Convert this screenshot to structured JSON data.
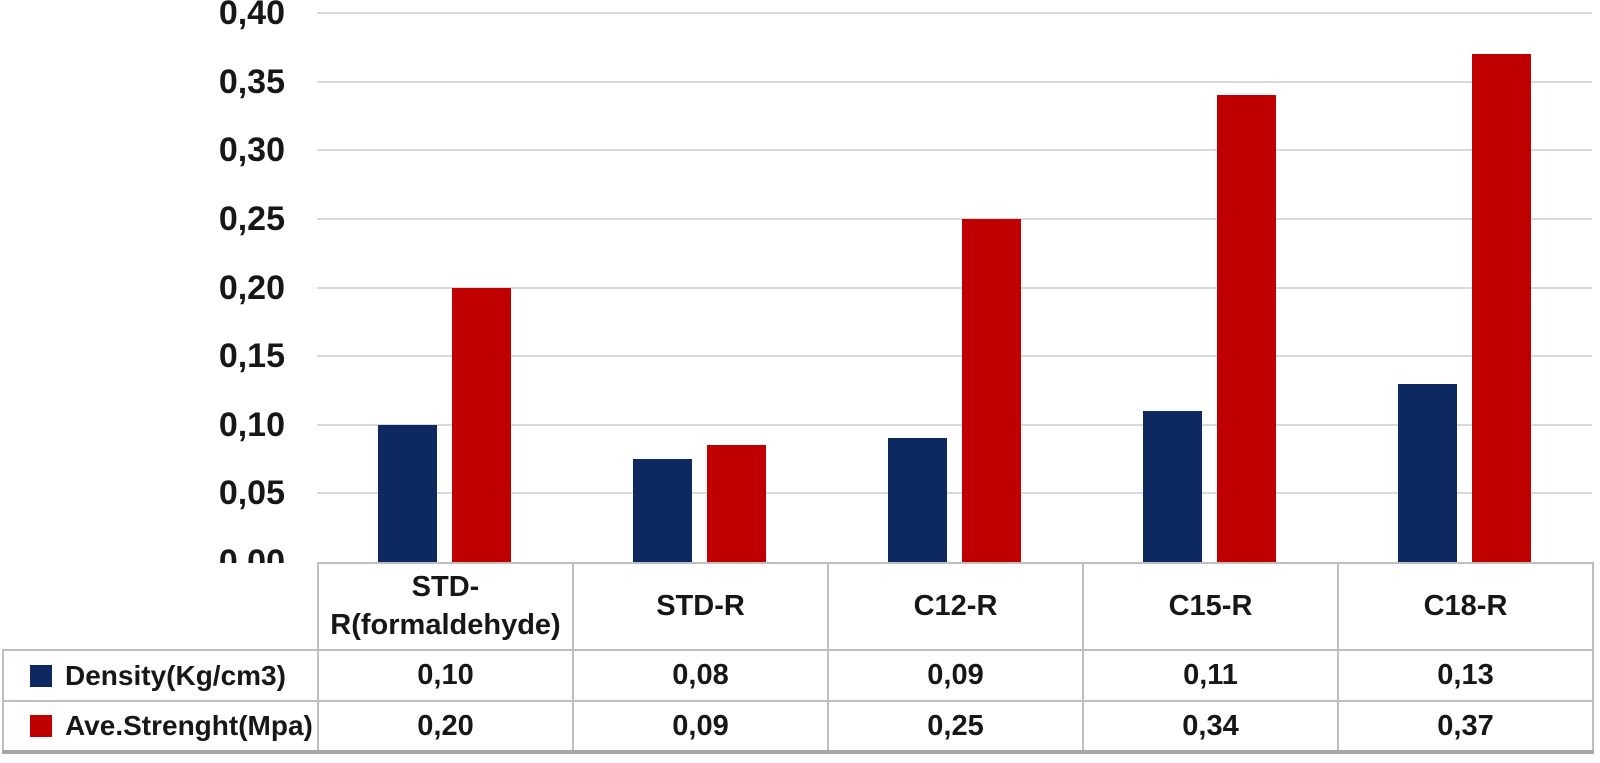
{
  "chart_data": {
    "type": "bar",
    "title": "",
    "xlabel": "",
    "ylabel": "",
    "categories": [
      "STD-R(formaldehyde)",
      "STD-R",
      "C12-R",
      "C15-R",
      "C18-R"
    ],
    "series": [
      {
        "name": "Density(Kg/cm3)",
        "color": "#0e2862",
        "values": [
          0.1,
          0.08,
          0.09,
          0.11,
          0.13
        ],
        "display": [
          "0,10",
          "0,08",
          "0,09",
          "0,11",
          "0,13"
        ],
        "bar_values": [
          0.1,
          0.075,
          0.09,
          0.11,
          0.13
        ]
      },
      {
        "name": "Ave.Strenght(Mpa)",
        "color": "#c00000",
        "values": [
          0.2,
          0.09,
          0.25,
          0.34,
          0.37
        ],
        "display": [
          "0,20",
          "0,09",
          "0,25",
          "0,34",
          "0,37"
        ],
        "bar_values": [
          0.2,
          0.085,
          0.25,
          0.34,
          0.37
        ]
      }
    ],
    "y_ticks": [
      "0,00",
      "0,05",
      "0,10",
      "0,15",
      "0,20",
      "0,25",
      "0,30",
      "0,35",
      "0,40"
    ],
    "ylim": [
      0,
      0.4
    ],
    "grid": true,
    "gridline_color": "#d9d9d9",
    "table_border_color": "#bfbfbf",
    "legend_position": "data-table-left-column"
  }
}
